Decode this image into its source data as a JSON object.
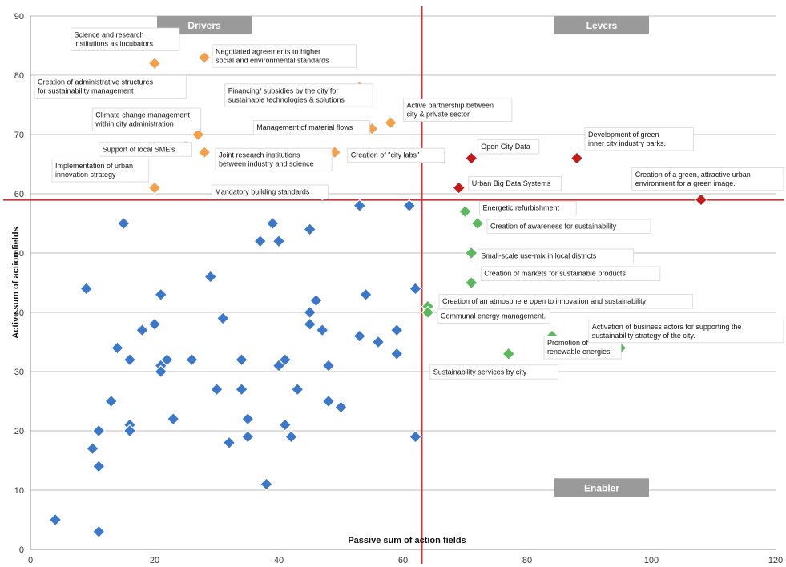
{
  "chart_data": {
    "type": "scatter",
    "xlabel": "Passive sum of action fields",
    "ylabel": "Active sum of action fields",
    "xlim": [
      0,
      120
    ],
    "ylim": [
      0,
      90
    ],
    "x_ticks": [
      "0",
      "20",
      "40",
      "60",
      "80",
      "100",
      "120"
    ],
    "y_ticks": [
      "0",
      "10",
      "20",
      "30",
      "40",
      "50",
      "60",
      "70",
      "80",
      "90"
    ],
    "grid": "horizontal",
    "thresholds": {
      "x": 63,
      "y": 59
    },
    "quadrant_labels": [
      {
        "text": "Drivers",
        "x": 28,
        "y": 88.5
      },
      {
        "text": "Levers",
        "x": 92,
        "y": 88.5
      },
      {
        "text": "Enabler",
        "x": 92,
        "y": 10.5
      }
    ],
    "colors": {
      "blue": "#3b78c9",
      "orange": "#f4a04a",
      "red": "#c51a1a",
      "green": "#5cb85c",
      "threshold_line": "#c0393b",
      "grid": "#a6a6a6",
      "quadrant_box": "#9a9a9a"
    },
    "series": [
      {
        "color": "blue",
        "points": [
          [
            4,
            5
          ],
          [
            9,
            44
          ],
          [
            10,
            17
          ],
          [
            11,
            20
          ],
          [
            11,
            14
          ],
          [
            11,
            3
          ],
          [
            13,
            25
          ],
          [
            14,
            34
          ],
          [
            15,
            55
          ],
          [
            16,
            32
          ],
          [
            16,
            21
          ],
          [
            16,
            20
          ],
          [
            18,
            37
          ],
          [
            20,
            38
          ],
          [
            21,
            43
          ],
          [
            21,
            31
          ],
          [
            21,
            30
          ],
          [
            22,
            32
          ],
          [
            23,
            22
          ],
          [
            26,
            32
          ],
          [
            29,
            46
          ],
          [
            30,
            27
          ],
          [
            31,
            39
          ],
          [
            32,
            18
          ],
          [
            34,
            32
          ],
          [
            34,
            27
          ],
          [
            35,
            22
          ],
          [
            35,
            19
          ],
          [
            37,
            52
          ],
          [
            38,
            11
          ],
          [
            39,
            55
          ],
          [
            40,
            52
          ],
          [
            40,
            31
          ],
          [
            41,
            32
          ],
          [
            41,
            21
          ],
          [
            42,
            19
          ],
          [
            43,
            27
          ],
          [
            45,
            54
          ],
          [
            45,
            40
          ],
          [
            45,
            38
          ],
          [
            46,
            42
          ],
          [
            47,
            37
          ],
          [
            48,
            31
          ],
          [
            48,
            25
          ],
          [
            50,
            24
          ],
          [
            53,
            58
          ],
          [
            53,
            36
          ],
          [
            54,
            43
          ],
          [
            56,
            35
          ],
          [
            59,
            37
          ],
          [
            59,
            33
          ],
          [
            61,
            58
          ],
          [
            62,
            44
          ],
          [
            62,
            19
          ]
        ]
      },
      {
        "color": "orange",
        "points": [
          {
            "x": 22,
            "y": 85,
            "label": "Science and research\ninstitutions as incubators"
          },
          {
            "x": 28,
            "y": 83,
            "label": "Negotiated agreements to higher\nsocial and  environmental standards"
          },
          {
            "x": 20,
            "y": 82,
            "label": "Creation of administrative structures\nfor sustainability management"
          },
          {
            "x": 53,
            "y": 78,
            "label": "Financing/ subsidies by the city for\nsustainable technologies & solutions"
          },
          {
            "x": 58,
            "y": 72,
            "label": "Active partnership between\ncity & private sector"
          },
          {
            "x": 55,
            "y": 71,
            "label": "Management of material flows"
          },
          {
            "x": 27,
            "y": 70,
            "label": "Climate change management\nwithin city administration"
          },
          {
            "x": 25,
            "y": 68,
            "label": "Support of local SME's"
          },
          {
            "x": 28,
            "y": 67,
            "label": "Joint research institutions\nbetween industry and science"
          },
          {
            "x": 49,
            "y": 67,
            "label": "Creation of \"city labs\""
          },
          {
            "x": 20,
            "y": 61,
            "label": "Implementation of urban\ninnovation strategy"
          },
          {
            "x": 47,
            "y": 60,
            "label": "Mandatory building standards"
          }
        ]
      },
      {
        "color": "red",
        "points": [
          {
            "x": 71,
            "y": 66,
            "label": "Open City Data"
          },
          {
            "x": 88,
            "y": 66,
            "label": "Development of green\ninner city industry parks."
          },
          {
            "x": 69,
            "y": 61,
            "label": "Urban Big Data Systems"
          },
          {
            "x": 108,
            "y": 59,
            "label": "Creation of a green, attractive urban\nenvironment for a green image."
          }
        ]
      },
      {
        "color": "green",
        "points": [
          {
            "x": 70,
            "y": 57,
            "label": "Energetic refurbishment"
          },
          {
            "x": 72,
            "y": 55,
            "label": "Creation of awareness for sustainability"
          },
          {
            "x": 71,
            "y": 50,
            "label": "Small-scale use-mix in local districts"
          },
          {
            "x": 71,
            "y": 45,
            "label": "Creation of markets for sustainable products"
          },
          {
            "x": 64,
            "y": 41,
            "label": "Creation of an atmosphere open to innovation and sustainability"
          },
          {
            "x": 64,
            "y": 40,
            "label": "Communal energy management."
          },
          {
            "x": 84,
            "y": 36,
            "label": "Promotion of\nrenewable energies"
          },
          {
            "x": 95,
            "y": 34,
            "label": "Activation of business actors for supporting the\nsustainability strategy of the city."
          },
          {
            "x": 77,
            "y": 33,
            "label": "Sustainability services by city"
          }
        ]
      }
    ]
  }
}
